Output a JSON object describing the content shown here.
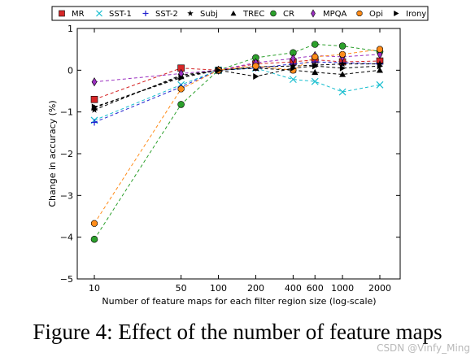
{
  "caption": "Figure 4: Effect of the number of feature maps",
  "watermark": "CSDN @Vinfy_Ming",
  "chart_data": {
    "type": "line",
    "xlabel": "Number of feature maps for each filter region size (log-scale)",
    "ylabel": "Change in accuracy (%)",
    "x_scale": "log",
    "x": [
      10,
      50,
      100,
      200,
      400,
      600,
      1000,
      2000
    ],
    "xticks": [
      "10",
      "50",
      "100",
      "200",
      "400",
      "600",
      "1000",
      "2000"
    ],
    "ylim": [
      -5,
      1
    ],
    "yticks": [
      1,
      0,
      -1,
      -2,
      -3,
      -4,
      -5
    ],
    "legend_position": "top",
    "series": [
      {
        "name": "MR",
        "color": "#d62728",
        "marker": "square",
        "values": [
          -0.7,
          0.05,
          0.0,
          0.15,
          0.2,
          0.25,
          0.2,
          0.22
        ]
      },
      {
        "name": "SST-1",
        "color": "#17becf",
        "marker": "x",
        "values": [
          -1.2,
          -0.35,
          0.0,
          0.05,
          -0.22,
          -0.27,
          -0.52,
          -0.35
        ]
      },
      {
        "name": "SST-2",
        "color": "#1f1fcf",
        "marker": "plus",
        "values": [
          -1.25,
          -0.4,
          0.0,
          0.05,
          0.15,
          0.2,
          0.18,
          0.15
        ]
      },
      {
        "name": "Subj",
        "color": "#000000",
        "marker": "star",
        "values": [
          -0.95,
          -0.12,
          0.0,
          0.08,
          0.1,
          0.12,
          0.15,
          0.15
        ]
      },
      {
        "name": "TREC",
        "color": "#000000",
        "marker": "triangle",
        "values": [
          -0.9,
          -0.15,
          0.0,
          0.05,
          0.0,
          -0.05,
          -0.1,
          0.0
        ]
      },
      {
        "name": "CR",
        "color": "#2ca02c",
        "marker": "circle",
        "values": [
          -4.05,
          -0.82,
          0.0,
          0.3,
          0.42,
          0.62,
          0.58,
          0.45
        ]
      },
      {
        "name": "MPQA",
        "color": "#9b30c0",
        "marker": "diamond",
        "values": [
          -0.28,
          -0.08,
          0.0,
          0.18,
          0.28,
          0.35,
          0.32,
          0.38
        ]
      },
      {
        "name": "Opi",
        "color": "#ff8c1a",
        "marker": "octagon",
        "values": [
          -3.67,
          -0.45,
          0.0,
          0.1,
          0.0,
          0.32,
          0.38,
          0.5
        ]
      },
      {
        "name": "Irony",
        "color": "#000000",
        "marker": "right-triangle",
        "values": [
          -0.88,
          -0.18,
          0.0,
          -0.15,
          0.05,
          0.1,
          0.05,
          0.1
        ]
      }
    ]
  }
}
